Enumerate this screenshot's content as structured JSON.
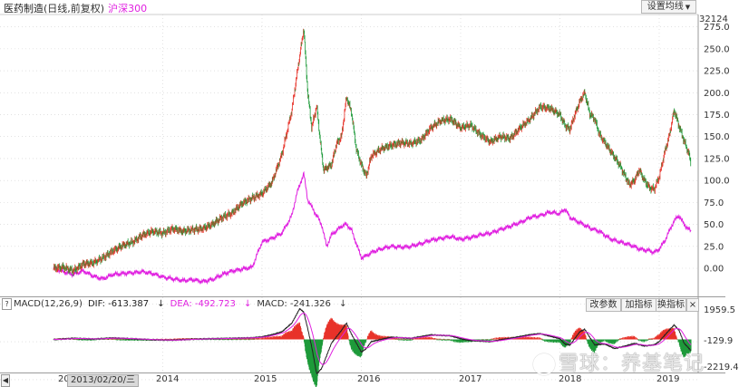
{
  "legend": {
    "symbol": "医药制造",
    "params": "(日线,前复权)",
    "compare": "沪深300"
  },
  "ma_button": "设置均线",
  "top_value": "32124",
  "macd": {
    "label": "MACD(12,26,9)",
    "dif": "DIF: -613.387",
    "dea": "DEA: -492.723",
    "macd": "MACD: -241.326",
    "buttons": [
      "改参数",
      "加指标",
      "换指标",
      "×"
    ],
    "y_labels": [
      "1959.5",
      "-129.9",
      "-2219.4"
    ]
  },
  "x_labels": [
    "20",
    "2014",
    "2015",
    "2016",
    "2017",
    "2018",
    "2019"
  ],
  "cursor_date": "2013/02/20/三",
  "watermark": "雪球：养基笔记",
  "colors": {
    "up": "#e8332a",
    "down": "#1e9a3a",
    "compare": "#e020e0",
    "grid": "#d0d0d0"
  },
  "chart_data": {
    "type": "line",
    "title": "",
    "y_ticks": [
      275,
      250,
      225,
      200,
      175,
      150,
      125,
      100,
      75,
      50,
      25,
      0
    ],
    "y_tick_labels": [
      "275.0",
      "250.0",
      "225.0",
      "200.0",
      "175.0",
      "150.0",
      "125.0",
      "100.0",
      "75.0",
      "50.0",
      "25.0",
      "0.00"
    ],
    "x_ticks": [
      "2014",
      "2015",
      "2016",
      "2017",
      "2018",
      "2019"
    ],
    "series": [
      {
        "name": "医药制造",
        "points": [
          [
            2012.9,
            0
          ],
          [
            2013.0,
            1
          ],
          [
            2013.1,
            -3
          ],
          [
            2013.2,
            5
          ],
          [
            2013.3,
            6
          ],
          [
            2013.4,
            12
          ],
          [
            2013.5,
            20
          ],
          [
            2013.6,
            26
          ],
          [
            2013.7,
            30
          ],
          [
            2013.8,
            38
          ],
          [
            2013.9,
            42
          ],
          [
            2014.0,
            40
          ],
          [
            2014.1,
            45
          ],
          [
            2014.2,
            42
          ],
          [
            2014.3,
            44
          ],
          [
            2014.4,
            45
          ],
          [
            2014.5,
            50
          ],
          [
            2014.6,
            58
          ],
          [
            2014.7,
            63
          ],
          [
            2014.8,
            74
          ],
          [
            2014.9,
            80
          ],
          [
            2015.0,
            85
          ],
          [
            2015.1,
            98
          ],
          [
            2015.2,
            130
          ],
          [
            2015.3,
            180
          ],
          [
            2015.35,
            220
          ],
          [
            2015.42,
            273
          ],
          [
            2015.46,
            200
          ],
          [
            2015.5,
            160
          ],
          [
            2015.55,
            185
          ],
          [
            2015.6,
            130
          ],
          [
            2015.62,
            112
          ],
          [
            2015.7,
            118
          ],
          [
            2015.75,
            142
          ],
          [
            2015.8,
            150
          ],
          [
            2015.85,
            195
          ],
          [
            2015.9,
            178
          ],
          [
            2015.95,
            135
          ],
          [
            2016.0,
            118
          ],
          [
            2016.05,
            105
          ],
          [
            2016.1,
            128
          ],
          [
            2016.2,
            136
          ],
          [
            2016.3,
            140
          ],
          [
            2016.4,
            143
          ],
          [
            2016.5,
            142
          ],
          [
            2016.6,
            146
          ],
          [
            2016.7,
            160
          ],
          [
            2016.8,
            168
          ],
          [
            2016.9,
            170
          ],
          [
            2017.0,
            160
          ],
          [
            2017.1,
            163
          ],
          [
            2017.2,
            152
          ],
          [
            2017.3,
            144
          ],
          [
            2017.4,
            150
          ],
          [
            2017.5,
            148
          ],
          [
            2017.6,
            160
          ],
          [
            2017.7,
            170
          ],
          [
            2017.8,
            184
          ],
          [
            2017.9,
            182
          ],
          [
            2018.0,
            175
          ],
          [
            2018.05,
            163
          ],
          [
            2018.1,
            158
          ],
          [
            2018.15,
            175
          ],
          [
            2018.2,
            190
          ],
          [
            2018.25,
            200
          ],
          [
            2018.3,
            176
          ],
          [
            2018.35,
            170
          ],
          [
            2018.4,
            152
          ],
          [
            2018.5,
            135
          ],
          [
            2018.6,
            118
          ],
          [
            2018.7,
            95
          ],
          [
            2018.75,
            100
          ],
          [
            2018.8,
            112
          ],
          [
            2018.85,
            100
          ],
          [
            2018.9,
            92
          ],
          [
            2018.95,
            90
          ],
          [
            2019.0,
            104
          ],
          [
            2019.05,
            130
          ],
          [
            2019.1,
            150
          ],
          [
            2019.15,
            180
          ],
          [
            2019.2,
            162
          ],
          [
            2019.25,
            145
          ],
          [
            2019.3,
            130
          ],
          [
            2019.32,
            118
          ]
        ]
      },
      {
        "name": "沪深300",
        "points": [
          [
            2012.9,
            0
          ],
          [
            2013.0,
            -4
          ],
          [
            2013.1,
            -7
          ],
          [
            2013.2,
            -3
          ],
          [
            2013.3,
            -9
          ],
          [
            2013.4,
            -12
          ],
          [
            2013.5,
            -7
          ],
          [
            2013.6,
            -6
          ],
          [
            2013.7,
            -5
          ],
          [
            2013.8,
            -4
          ],
          [
            2013.9,
            -6
          ],
          [
            2014.0,
            -10
          ],
          [
            2014.1,
            -12
          ],
          [
            2014.2,
            -14
          ],
          [
            2014.3,
            -13
          ],
          [
            2014.4,
            -15
          ],
          [
            2014.5,
            -13
          ],
          [
            2014.6,
            -7
          ],
          [
            2014.7,
            -3
          ],
          [
            2014.8,
            -1
          ],
          [
            2014.9,
            1
          ],
          [
            2015.0,
            30
          ],
          [
            2015.1,
            34
          ],
          [
            2015.2,
            40
          ],
          [
            2015.3,
            60
          ],
          [
            2015.35,
            85
          ],
          [
            2015.42,
            108
          ],
          [
            2015.46,
            78
          ],
          [
            2015.5,
            70
          ],
          [
            2015.55,
            60
          ],
          [
            2015.6,
            50
          ],
          [
            2015.65,
            25
          ],
          [
            2015.7,
            38
          ],
          [
            2015.75,
            43
          ],
          [
            2015.8,
            48
          ],
          [
            2015.85,
            50
          ],
          [
            2015.9,
            44
          ],
          [
            2015.95,
            28
          ],
          [
            2016.0,
            12
          ],
          [
            2016.05,
            14
          ],
          [
            2016.1,
            18
          ],
          [
            2016.2,
            22
          ],
          [
            2016.3,
            25
          ],
          [
            2016.4,
            24
          ],
          [
            2016.5,
            25
          ],
          [
            2016.6,
            28
          ],
          [
            2016.7,
            32
          ],
          [
            2016.8,
            34
          ],
          [
            2016.9,
            36
          ],
          [
            2017.0,
            33
          ],
          [
            2017.1,
            35
          ],
          [
            2017.2,
            38
          ],
          [
            2017.3,
            40
          ],
          [
            2017.4,
            44
          ],
          [
            2017.5,
            48
          ],
          [
            2017.6,
            52
          ],
          [
            2017.7,
            58
          ],
          [
            2017.8,
            60
          ],
          [
            2017.9,
            64
          ],
          [
            2018.0,
            62
          ],
          [
            2018.05,
            68
          ],
          [
            2018.1,
            58
          ],
          [
            2018.2,
            52
          ],
          [
            2018.3,
            46
          ],
          [
            2018.4,
            42
          ],
          [
            2018.5,
            34
          ],
          [
            2018.6,
            30
          ],
          [
            2018.7,
            27
          ],
          [
            2018.8,
            22
          ],
          [
            2018.9,
            20
          ],
          [
            2018.95,
            18
          ],
          [
            2019.0,
            22
          ],
          [
            2019.05,
            30
          ],
          [
            2019.1,
            42
          ],
          [
            2019.15,
            54
          ],
          [
            2019.2,
            60
          ],
          [
            2019.25,
            50
          ],
          [
            2019.3,
            44
          ],
          [
            2019.32,
            42
          ]
        ]
      }
    ],
    "macd_y_range": [
      -2219.4,
      1959.5
    ],
    "macd_points": [
      [
        2012.9,
        -10
      ],
      [
        2013.1,
        60
      ],
      [
        2013.3,
        20
      ],
      [
        2013.5,
        80
      ],
      [
        2013.7,
        30
      ],
      [
        2013.9,
        -20
      ],
      [
        2014.1,
        -40
      ],
      [
        2014.3,
        10
      ],
      [
        2014.5,
        40
      ],
      [
        2014.7,
        60
      ],
      [
        2014.9,
        90
      ],
      [
        2015.0,
        140
      ],
      [
        2015.1,
        260
      ],
      [
        2015.2,
        420
      ],
      [
        2015.3,
        900
      ],
      [
        2015.38,
        1700
      ],
      [
        2015.42,
        1500
      ],
      [
        2015.46,
        600
      ],
      [
        2015.5,
        -400
      ],
      [
        2015.55,
        -1900
      ],
      [
        2015.6,
        -1600
      ],
      [
        2015.65,
        -900
      ],
      [
        2015.7,
        -200
      ],
      [
        2015.8,
        500
      ],
      [
        2015.85,
        900
      ],
      [
        2015.9,
        300
      ],
      [
        2016.0,
        -700
      ],
      [
        2016.05,
        -500
      ],
      [
        2016.1,
        -120
      ],
      [
        2016.3,
        120
      ],
      [
        2016.5,
        60
      ],
      [
        2016.7,
        250
      ],
      [
        2016.9,
        200
      ],
      [
        2017.0,
        40
      ],
      [
        2017.1,
        -60
      ],
      [
        2017.3,
        -120
      ],
      [
        2017.5,
        60
      ],
      [
        2017.7,
        260
      ],
      [
        2017.8,
        320
      ],
      [
        2017.9,
        180
      ],
      [
        2018.0,
        40
      ],
      [
        2018.05,
        -250
      ],
      [
        2018.1,
        -320
      ],
      [
        2018.2,
        420
      ],
      [
        2018.25,
        560
      ],
      [
        2018.3,
        120
      ],
      [
        2018.35,
        -300
      ],
      [
        2018.45,
        -250
      ],
      [
        2018.55,
        -500
      ],
      [
        2018.65,
        -380
      ],
      [
        2018.75,
        -220
      ],
      [
        2018.85,
        -360
      ],
      [
        2018.95,
        -300
      ],
      [
        2019.0,
        -120
      ],
      [
        2019.05,
        200
      ],
      [
        2019.1,
        500
      ],
      [
        2019.15,
        800
      ],
      [
        2019.2,
        500
      ],
      [
        2019.25,
        -200
      ],
      [
        2019.3,
        -500
      ],
      [
        2019.32,
        -613
      ]
    ]
  }
}
